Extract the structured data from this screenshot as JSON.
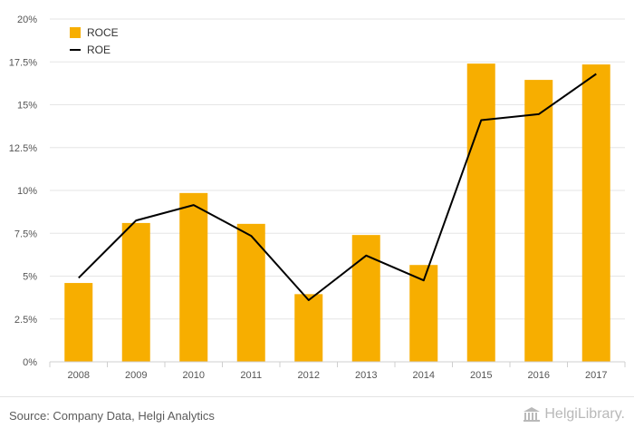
{
  "chart_data": {
    "type": "bar",
    "categories": [
      "2008",
      "2009",
      "2010",
      "2011",
      "2012",
      "2013",
      "2014",
      "2015",
      "2016",
      "2017"
    ],
    "series": [
      {
        "name": "ROCE",
        "type": "bar",
        "color": "#f7ae00",
        "values": [
          4.6,
          8.1,
          9.85,
          8.05,
          3.95,
          7.4,
          5.65,
          17.4,
          16.45,
          17.35
        ]
      },
      {
        "name": "ROE",
        "type": "line",
        "color": "#000000",
        "values": [
          4.9,
          8.25,
          9.15,
          7.35,
          3.6,
          6.2,
          4.75,
          14.1,
          14.45,
          16.8
        ]
      }
    ],
    "ylim": [
      0,
      20
    ],
    "yticks": [
      "0%",
      "2.5%",
      "5%",
      "7.5%",
      "10%",
      "12.5%",
      "15%",
      "17.5%",
      "20%"
    ],
    "ytick_values": [
      0,
      2.5,
      5,
      7.5,
      10,
      12.5,
      15,
      17.5,
      20
    ],
    "grid": true,
    "legend_position": "top-left",
    "title": "",
    "xlabel": "",
    "ylabel": ""
  },
  "footer": {
    "source": "Source: Company Data, Helgi Analytics",
    "brand": "HelgiLibrary."
  },
  "colors": {
    "bar": "#f7ae00",
    "line": "#000000",
    "grid": "#e6e6e6"
  },
  "icons": {
    "brand": "library-building-icon"
  }
}
